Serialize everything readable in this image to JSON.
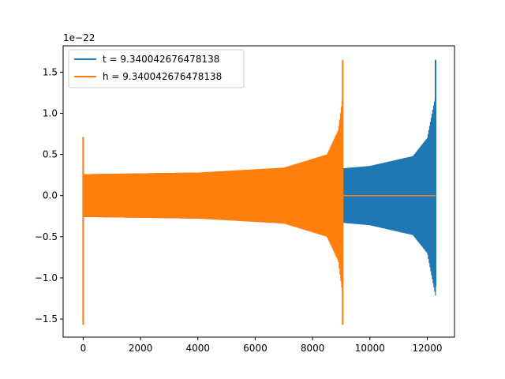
{
  "chart_data": {
    "type": "line",
    "title": "",
    "xlabel": "",
    "ylabel": "",
    "offset_label": "1e−22",
    "xlim": [
      -700,
      12950
    ],
    "ylim": [
      -1.72,
      1.82
    ],
    "xticks": [
      0,
      2000,
      4000,
      6000,
      8000,
      10000,
      12000
    ],
    "xtick_labels": [
      "0",
      "2000",
      "4000",
      "6000",
      "8000",
      "10000",
      "12000"
    ],
    "yticks": [
      -1.5,
      -1.0,
      -0.5,
      0.0,
      0.5,
      1.0,
      1.5
    ],
    "ytick_labels": [
      "−1.5",
      "−1.0",
      "−0.5",
      "0.0",
      "0.5",
      "1.0",
      "1.5"
    ],
    "grid": false,
    "legend_position": "upper-left",
    "series": [
      {
        "name": "t = 9.340042676478138",
        "color": "#1f77b4",
        "x_start": 0,
        "x_end": 12290,
        "initial_spike": {
          "x": 0,
          "max": 0.71,
          "min": -1.57
        },
        "envelope": [
          {
            "x": 0,
            "amp": 0.26
          },
          {
            "x": 4000,
            "amp": 0.28
          },
          {
            "x": 8000,
            "amp": 0.3
          },
          {
            "x": 10000,
            "amp": 0.36
          },
          {
            "x": 11500,
            "amp": 0.48
          },
          {
            "x": 12000,
            "amp": 0.7
          },
          {
            "x": 12290,
            "amp": 1.22
          }
        ],
        "final_spike": {
          "x": 12290,
          "max": 1.65,
          "min": -1.1
        }
      },
      {
        "name": "h = 9.340042676478138",
        "color": "#ff7f0e",
        "x_start": 0,
        "x_end": 9050,
        "initial_spike": {
          "x": 0,
          "max": 0.71,
          "min": -1.57
        },
        "envelope": [
          {
            "x": 0,
            "amp": 0.26
          },
          {
            "x": 4000,
            "amp": 0.28
          },
          {
            "x": 7000,
            "amp": 0.34
          },
          {
            "x": 8500,
            "amp": 0.5
          },
          {
            "x": 8900,
            "amp": 0.8
          },
          {
            "x": 9050,
            "amp": 1.22
          }
        ],
        "final_spike": {
          "x": 9050,
          "max": 1.65,
          "min": -1.57
        },
        "flat_after": {
          "x_start": 9050,
          "x_end": 12290,
          "value": 0.0
        }
      }
    ]
  }
}
